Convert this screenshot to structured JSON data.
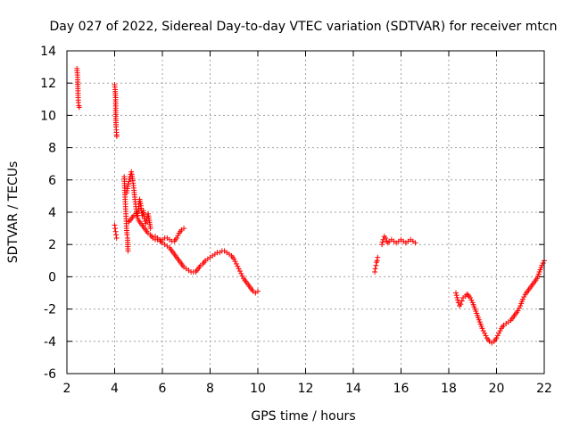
{
  "chart_data": {
    "type": "scatter",
    "title": "Day 027 of 2022, Sidereal Day-to-day VTEC variation (SDTVAR) for receiver mtcn",
    "xlabel": "GPS time / hours",
    "ylabel": "SDTVAR / TECUs",
    "xlim": [
      2,
      22
    ],
    "ylim": [
      -6,
      14
    ],
    "xticks": [
      "2",
      "4",
      "6",
      "8",
      "10",
      "12",
      "14",
      "16",
      "18",
      "20",
      "22"
    ],
    "yticks": [
      "-6",
      "-4",
      "-2",
      "0",
      "2",
      "4",
      "6",
      "8",
      "10",
      "12",
      "14"
    ],
    "grid": true,
    "marker": "+",
    "color": "#ff0000",
    "series": [
      {
        "name": "SDTVAR",
        "segments": [
          [
            [
              2.42,
              12.9
            ],
            [
              2.44,
              12.5
            ],
            [
              2.45,
              12.2
            ],
            [
              2.46,
              11.8
            ],
            [
              2.47,
              11.1
            ],
            [
              2.48,
              10.8
            ],
            [
              2.5,
              10.6
            ],
            [
              2.52,
              10.5
            ]
          ],
          [
            [
              4.0,
              11.9
            ],
            [
              4.02,
              11.6
            ],
            [
              4.04,
              11.1
            ],
            [
              4.05,
              9.8
            ],
            [
              4.06,
              9.3
            ],
            [
              4.07,
              9.1
            ],
            [
              4.08,
              8.8
            ],
            [
              4.09,
              8.7
            ]
          ],
          [
            [
              4.0,
              3.2
            ],
            [
              4.02,
              3.0
            ],
            [
              4.04,
              2.8
            ],
            [
              4.06,
              2.6
            ],
            [
              4.08,
              2.4
            ]
          ],
          [
            [
              4.4,
              6.2
            ],
            [
              4.42,
              5.5
            ],
            [
              4.44,
              4.8
            ],
            [
              4.46,
              4.2
            ],
            [
              4.48,
              3.6
            ],
            [
              4.5,
              3.0
            ],
            [
              4.52,
              2.6
            ],
            [
              4.54,
              2.4
            ],
            [
              4.56,
              1.6
            ]
          ],
          [
            [
              4.5,
              5.2
            ],
            [
              4.55,
              5.6
            ],
            [
              4.6,
              5.9
            ],
            [
              4.65,
              6.2
            ],
            [
              4.7,
              6.5
            ],
            [
              4.75,
              6.1
            ],
            [
              4.8,
              5.5
            ],
            [
              4.85,
              4.8
            ],
            [
              4.9,
              4.2
            ],
            [
              4.95,
              3.8
            ],
            [
              5.0,
              4.2
            ],
            [
              5.05,
              4.8
            ],
            [
              5.1,
              4.4
            ],
            [
              5.15,
              3.8
            ],
            [
              5.2,
              4.1
            ],
            [
              5.25,
              3.6
            ],
            [
              5.3,
              3.3
            ],
            [
              5.35,
              3.6
            ],
            [
              5.4,
              3.9
            ],
            [
              5.45,
              3.5
            ],
            [
              5.5,
              3.0
            ]
          ],
          [
            [
              4.6,
              3.4
            ],
            [
              4.7,
              3.6
            ],
            [
              4.8,
              3.8
            ],
            [
              4.9,
              3.9
            ],
            [
              5.0,
              3.5
            ],
            [
              5.1,
              3.3
            ],
            [
              5.2,
              3.1
            ],
            [
              5.3,
              2.9
            ],
            [
              5.4,
              2.7
            ],
            [
              5.5,
              2.6
            ],
            [
              5.6,
              2.4
            ],
            [
              5.7,
              2.3
            ],
            [
              5.8,
              2.3
            ],
            [
              5.9,
              2.2
            ],
            [
              6.0,
              2.3
            ],
            [
              6.1,
              2.4
            ],
            [
              6.2,
              2.4
            ],
            [
              6.3,
              2.3
            ],
            [
              6.4,
              2.2
            ],
            [
              6.5,
              2.2
            ],
            [
              6.6,
              2.4
            ],
            [
              6.7,
              2.7
            ],
            [
              6.8,
              2.9
            ],
            [
              6.9,
              3.0
            ]
          ],
          [
            [
              5.7,
              2.5
            ],
            [
              5.8,
              2.4
            ],
            [
              5.9,
              2.3
            ],
            [
              6.0,
              2.1
            ],
            [
              6.1,
              2.0
            ],
            [
              6.2,
              1.9
            ],
            [
              6.3,
              1.8
            ],
            [
              6.4,
              1.6
            ],
            [
              6.5,
              1.4
            ],
            [
              6.6,
              1.2
            ],
            [
              6.7,
              1.0
            ],
            [
              6.8,
              0.8
            ],
            [
              6.9,
              0.6
            ],
            [
              7.0,
              0.5
            ],
            [
              7.1,
              0.4
            ],
            [
              7.2,
              0.3
            ],
            [
              7.3,
              0.3
            ],
            [
              7.4,
              0.3
            ],
            [
              7.5,
              0.5
            ],
            [
              7.6,
              0.7
            ],
            [
              7.7,
              0.8
            ],
            [
              7.8,
              1.0
            ],
            [
              7.9,
              1.1
            ],
            [
              8.0,
              1.2
            ],
            [
              8.1,
              1.3
            ],
            [
              8.2,
              1.4
            ],
            [
              8.3,
              1.5
            ],
            [
              8.4,
              1.5
            ],
            [
              8.5,
              1.6
            ],
            [
              8.6,
              1.6
            ],
            [
              8.7,
              1.5
            ],
            [
              8.8,
              1.4
            ],
            [
              8.9,
              1.3
            ],
            [
              9.0,
              1.1
            ],
            [
              9.1,
              0.8
            ],
            [
              9.2,
              0.5
            ],
            [
              9.3,
              0.2
            ],
            [
              9.4,
              -0.1
            ],
            [
              9.5,
              -0.3
            ],
            [
              9.6,
              -0.5
            ],
            [
              9.7,
              -0.7
            ],
            [
              9.8,
              -0.9
            ],
            [
              9.9,
              -1.0
            ],
            [
              10.0,
              -0.9
            ]
          ],
          [
            [
              14.9,
              0.3
            ],
            [
              14.92,
              0.5
            ],
            [
              14.95,
              0.7
            ],
            [
              14.97,
              0.9
            ],
            [
              15.0,
              1.0
            ],
            [
              15.02,
              1.2
            ]
          ],
          [
            [
              15.2,
              2.0
            ],
            [
              15.25,
              2.3
            ],
            [
              15.3,
              2.5
            ],
            [
              15.35,
              2.4
            ],
            [
              15.4,
              2.2
            ],
            [
              15.45,
              2.1
            ],
            [
              15.5,
              2.2
            ],
            [
              15.6,
              2.3
            ],
            [
              15.7,
              2.2
            ],
            [
              15.8,
              2.1
            ],
            [
              15.9,
              2.2
            ],
            [
              16.0,
              2.3
            ],
            [
              16.1,
              2.2
            ],
            [
              16.2,
              2.1
            ],
            [
              16.3,
              2.2
            ],
            [
              16.4,
              2.3
            ],
            [
              16.5,
              2.2
            ],
            [
              16.6,
              2.1
            ]
          ],
          [
            [
              18.3,
              -1.0
            ],
            [
              18.35,
              -1.3
            ],
            [
              18.4,
              -1.6
            ],
            [
              18.45,
              -1.8
            ],
            [
              18.5,
              -1.7
            ],
            [
              18.55,
              -1.5
            ],
            [
              18.6,
              -1.3
            ],
            [
              18.7,
              -1.2
            ],
            [
              18.75,
              -1.1
            ],
            [
              18.8,
              -1.1
            ],
            [
              18.9,
              -1.3
            ],
            [
              19.0,
              -1.6
            ],
            [
              19.1,
              -2.0
            ],
            [
              19.2,
              -2.4
            ],
            [
              19.3,
              -2.8
            ],
            [
              19.4,
              -3.2
            ],
            [
              19.5,
              -3.5
            ],
            [
              19.6,
              -3.8
            ],
            [
              19.7,
              -4.0
            ],
            [
              19.8,
              -4.1
            ],
            [
              19.9,
              -4.0
            ],
            [
              20.0,
              -3.8
            ],
            [
              20.1,
              -3.5
            ],
            [
              20.2,
              -3.2
            ],
            [
              20.3,
              -3.0
            ],
            [
              20.4,
              -2.9
            ],
            [
              20.5,
              -2.8
            ],
            [
              20.6,
              -2.7
            ],
            [
              20.7,
              -2.5
            ],
            [
              20.8,
              -2.3
            ],
            [
              20.9,
              -2.1
            ],
            [
              21.0,
              -1.8
            ],
            [
              21.1,
              -1.4
            ],
            [
              21.2,
              -1.1
            ],
            [
              21.3,
              -0.9
            ],
            [
              21.4,
              -0.7
            ],
            [
              21.5,
              -0.5
            ],
            [
              21.6,
              -0.3
            ],
            [
              21.7,
              -0.1
            ],
            [
              21.8,
              0.3
            ],
            [
              21.9,
              0.7
            ],
            [
              22.0,
              1.0
            ]
          ]
        ]
      }
    ]
  }
}
